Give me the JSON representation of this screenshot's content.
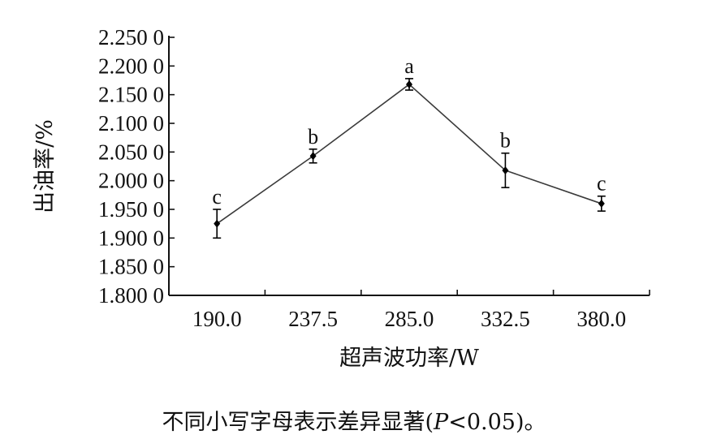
{
  "chart_data": {
    "type": "line",
    "x": [
      "190.0",
      "237.5",
      "285.0",
      "332.5",
      "380.0"
    ],
    "series": [
      {
        "values": [
          1.925,
          2.043,
          2.168,
          2.018,
          1.96
        ],
        "errors": [
          0.025,
          0.012,
          0.01,
          0.03,
          0.013
        ],
        "labels": [
          "c",
          "b",
          "a",
          "b",
          "c"
        ]
      }
    ],
    "xlabel": "超声波功率/W",
    "ylabel": "出油率/%",
    "ylim": [
      1.8,
      2.25
    ],
    "yticks": [
      "1.800 0",
      "1.850 0",
      "1.900 0",
      "1.950 0",
      "2.000 0",
      "2.050 0",
      "2.100 0",
      "2.150 0",
      "2.200 0",
      "2.250 0"
    ],
    "grid": false,
    "legend": "none"
  },
  "caption": {
    "before": "不同小写字母表示差异显著(",
    "p": "P",
    "after": "<0.05)。"
  },
  "colors": {
    "line": "#3a3a3a",
    "marker": "#000000",
    "axis": "#111111"
  }
}
